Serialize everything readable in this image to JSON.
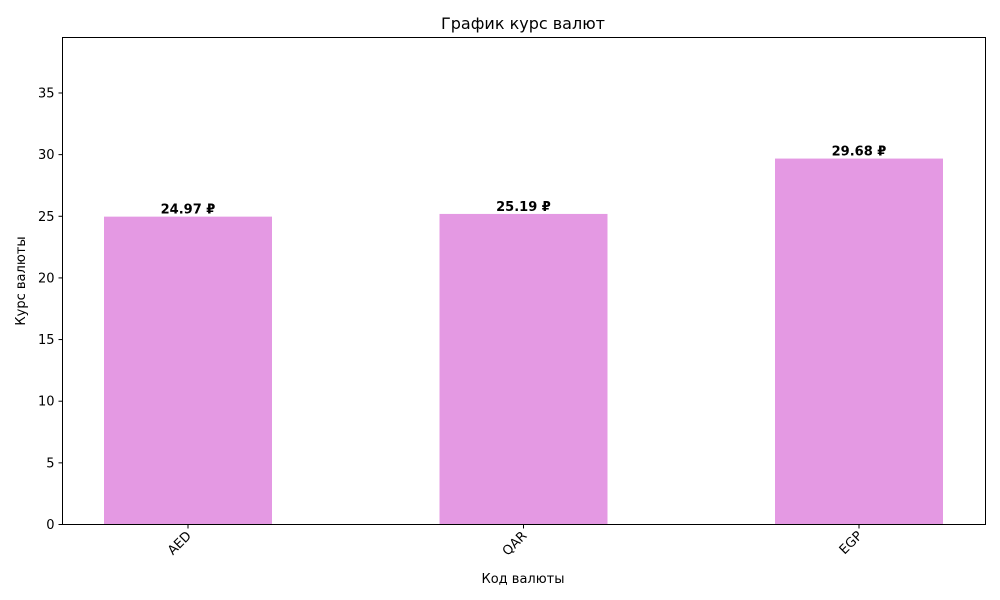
{
  "chart_data": {
    "type": "bar",
    "title": "График курс валют",
    "xlabel": "Код валюты",
    "ylabel": "Курс валюты",
    "categories": [
      "AED",
      "QAR",
      "EGP"
    ],
    "values": [
      24.97,
      25.19,
      29.68
    ],
    "value_labels": [
      "24.97 ₽",
      "25.19 ₽",
      "29.68 ₽"
    ],
    "ylim": [
      0,
      39.5
    ],
    "yticks": [
      0,
      5,
      10,
      15,
      20,
      25,
      30,
      35
    ],
    "bar_color": "#e499e3",
    "grid": false,
    "legend": "none"
  }
}
